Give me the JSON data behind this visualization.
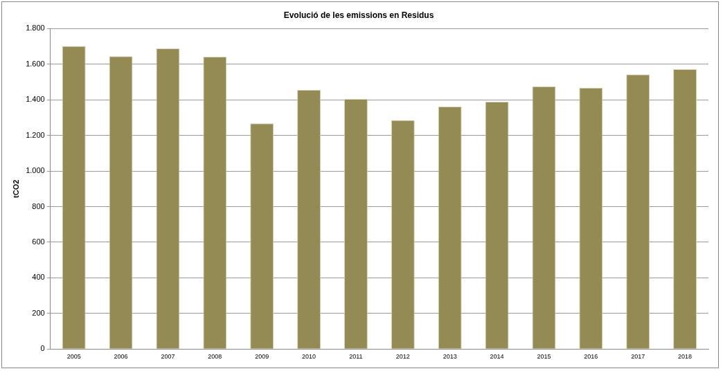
{
  "chart_data": {
    "type": "bar",
    "title": "Evolució de les emissions en Residus",
    "ylabel": "tCO2",
    "categories": [
      "2005",
      "2006",
      "2007",
      "2008",
      "2009",
      "2010",
      "2011",
      "2012",
      "2013",
      "2014",
      "2015",
      "2016",
      "2017",
      "2018"
    ],
    "values": [
      1702,
      1645,
      1689,
      1642,
      1268,
      1456,
      1405,
      1286,
      1362,
      1389,
      1476,
      1468,
      1543,
      1572
    ],
    "color": "#948a54",
    "ylim": [
      0,
      1800
    ],
    "yticks": [
      {
        "value": 0,
        "label": "0"
      },
      {
        "value": 200,
        "label": "200"
      },
      {
        "value": 400,
        "label": "400"
      },
      {
        "value": 600,
        "label": "600"
      },
      {
        "value": 800,
        "label": "800"
      },
      {
        "value": 1000,
        "label": "1.000"
      },
      {
        "value": 1200,
        "label": "1.200"
      },
      {
        "value": 1400,
        "label": "1.400"
      },
      {
        "value": 1600,
        "label": "1.600"
      },
      {
        "value": 1800,
        "label": "1.800"
      }
    ],
    "grid": "y",
    "legend": false
  }
}
